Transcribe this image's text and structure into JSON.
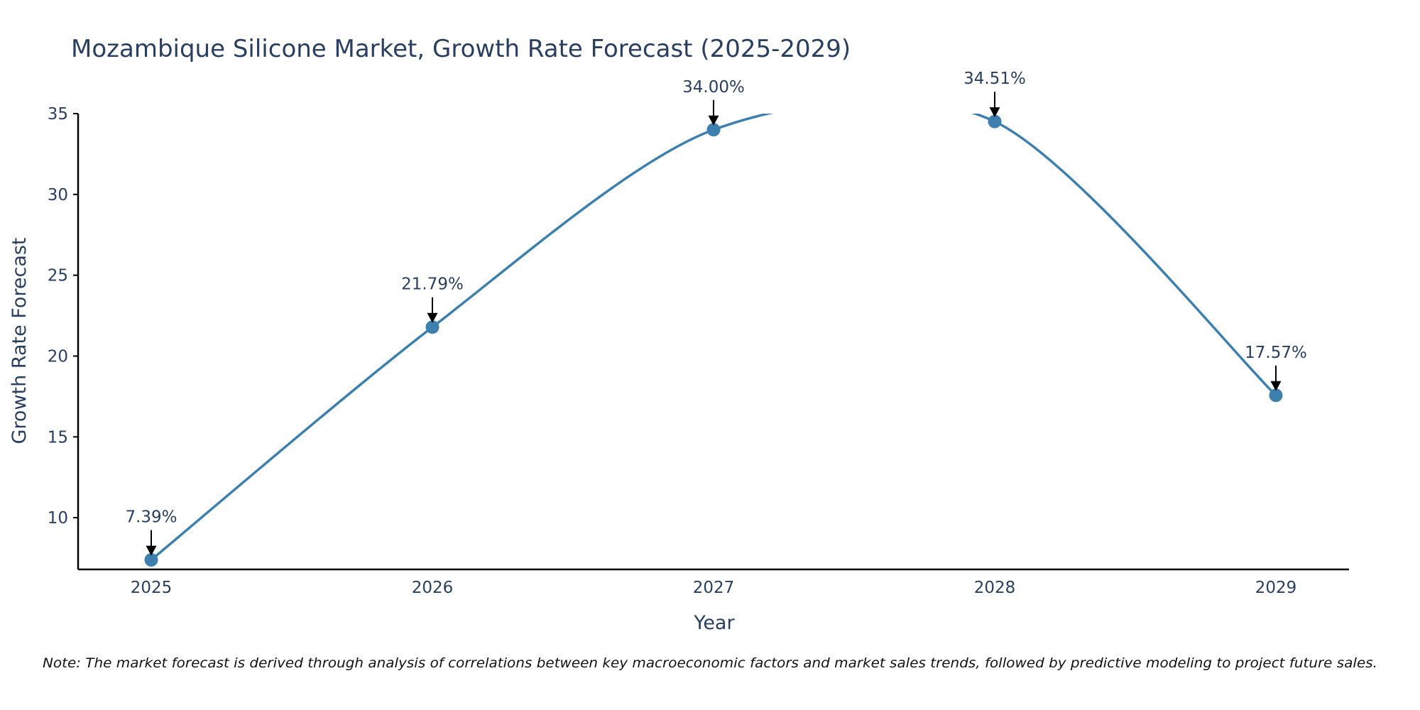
{
  "chart_data": {
    "type": "line",
    "title": "Mozambique Silicone Market, Growth Rate Forecast (2025-2029)",
    "xlabel": "Year",
    "ylabel": "Growth Rate Forecast",
    "categories": [
      "2025",
      "2026",
      "2027",
      "2028",
      "2029"
    ],
    "series": [
      {
        "name": "Growth Rate Forecast",
        "values": [
          7.39,
          21.79,
          34.0,
          34.51,
          17.57
        ],
        "labels": [
          "7.39%",
          "21.79%",
          "34.00%",
          "34.51%",
          "17.57%"
        ],
        "color": "#3d7fad"
      }
    ],
    "ylim": [
      6.8,
      35
    ],
    "yticks": [
      10,
      15,
      20,
      25,
      30,
      35
    ],
    "smoothing": "spline",
    "grid": false,
    "note": "Note: The market forecast is derived through analysis of correlations between key macroeconomic factors and market sales trends, followed by predictive modeling to project future sales."
  }
}
